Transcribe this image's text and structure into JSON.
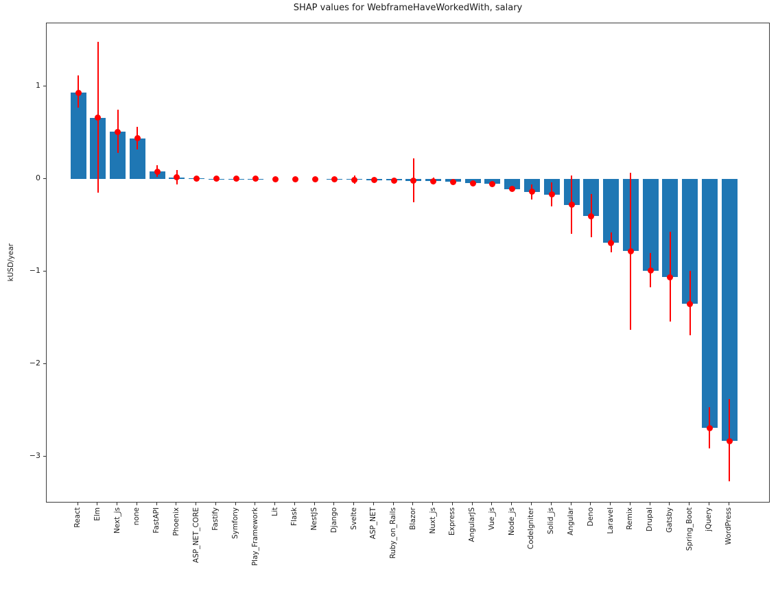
{
  "chart_data": {
    "type": "bar",
    "title": "SHAP values for WebframeHaveWorkedWith, salary",
    "xlabel": "",
    "ylabel": "kUSD/year",
    "ylim": [
      -3.5,
      1.68
    ],
    "yticks": [
      1,
      0,
      -1,
      -2,
      -3
    ],
    "grid": false,
    "legend": null,
    "bar_color": "#1f77b4",
    "error_color": "#ff0000",
    "categories": [
      "React",
      "Elm",
      "Next_js",
      "none",
      "FastAPI",
      "Phoenix",
      "ASP_NET_CORE",
      "Fastify",
      "Symfony",
      "Play_Framework",
      "Lit",
      "Flask",
      "NestJS",
      "Django",
      "Svelte",
      "ASP_NET",
      "Ruby_on_Rails",
      "Blazor",
      "Nuxt_js",
      "Express",
      "AngularJS",
      "Vue_js",
      "Node_js",
      "CodeIgniter",
      "Solid_js",
      "Angular",
      "Deno",
      "Laravel",
      "Remix",
      "Drupal",
      "Gatsby",
      "Spring_Boot",
      "jQuery",
      "WordPress"
    ],
    "values": [
      0.93,
      0.66,
      0.51,
      0.44,
      0.08,
      0.015,
      0.005,
      0.002,
      0.001,
      0.001,
      0.0,
      0.0,
      0.0,
      -0.002,
      -0.008,
      -0.013,
      -0.015,
      -0.02,
      -0.025,
      -0.032,
      -0.045,
      -0.055,
      -0.11,
      -0.14,
      -0.17,
      -0.28,
      -0.4,
      -0.69,
      -0.78,
      -0.99,
      -1.06,
      -1.35,
      -2.69,
      -2.83
    ],
    "point_values": [
      0.93,
      0.66,
      0.51,
      0.44,
      0.08,
      0.015,
      0.005,
      0.002,
      0.001,
      0.001,
      0.0,
      0.0,
      0.0,
      -0.002,
      -0.008,
      -0.013,
      -0.015,
      -0.02,
      -0.025,
      -0.032,
      -0.045,
      -0.055,
      -0.11,
      -0.14,
      -0.17,
      -0.28,
      -0.4,
      -0.69,
      -0.78,
      -0.99,
      -1.06,
      -1.35,
      -2.69,
      -2.83
    ],
    "error_ranges": [
      [
        0.77,
        1.12
      ],
      [
        -0.15,
        1.48
      ],
      [
        0.28,
        0.75
      ],
      [
        0.32,
        0.56
      ],
      [
        0.02,
        0.15
      ],
      [
        -0.06,
        0.1
      ],
      [
        -0.01,
        0.02
      ],
      [
        0.002,
        0.002
      ],
      [
        0.001,
        0.001
      ],
      [
        0.001,
        0.001
      ],
      [
        0.0,
        0.0
      ],
      [
        0.0,
        0.0
      ],
      [
        0.0,
        0.0
      ],
      [
        -0.002,
        -0.002
      ],
      [
        -0.05,
        0.035
      ],
      [
        -0.03,
        0.0
      ],
      [
        -0.04,
        0.01
      ],
      [
        -0.25,
        0.22
      ],
      [
        -0.06,
        0.015
      ],
      [
        -0.05,
        -0.01
      ],
      [
        -0.07,
        -0.02
      ],
      [
        -0.08,
        -0.03
      ],
      [
        -0.13,
        -0.09
      ],
      [
        -0.22,
        -0.06
      ],
      [
        -0.3,
        -0.04
      ],
      [
        -0.59,
        0.04
      ],
      [
        -0.63,
        -0.16
      ],
      [
        -0.79,
        -0.58
      ],
      [
        -1.63,
        0.07
      ],
      [
        -1.17,
        -0.8
      ],
      [
        -1.54,
        -0.57
      ],
      [
        -1.69,
        -0.99
      ],
      [
        -2.91,
        -2.47
      ],
      [
        -3.27,
        -2.38
      ]
    ]
  }
}
